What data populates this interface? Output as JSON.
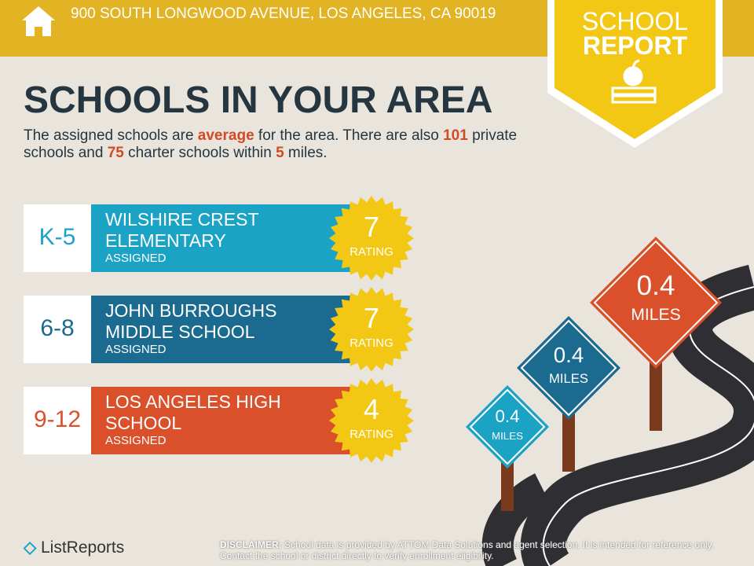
{
  "header": {
    "address": "900 SOUTH LONGWOOD AVENUE, LOS ANGELES, CA 90019",
    "badge": [
      "SCHOOL",
      "REPORT"
    ]
  },
  "title": "SCHOOLS IN YOUR AREA",
  "summary": [
    {
      "text": "The assigned schools are "
    },
    {
      "text": "average",
      "highlight": true
    },
    {
      "text": " for the area. There are also "
    },
    {
      "text": "101",
      "highlight": true
    },
    {
      "text": " private schools and "
    },
    {
      "text": "75",
      "highlight": true
    },
    {
      "text": " charter schools within "
    },
    {
      "text": "5",
      "highlight": true
    },
    {
      "text": " miles."
    }
  ],
  "schools": [
    {
      "grades": "K-5",
      "name": [
        "WILSHIRE CREST",
        "ELEMENTARY"
      ],
      "status": "ASSIGNED",
      "rating": 7,
      "rating_label": "RATING",
      "color": "#1ba3c6"
    },
    {
      "grades": "6-8",
      "name": [
        "JOHN BURROUGHS",
        "MIDDLE SCHOOL"
      ],
      "status": "ASSIGNED",
      "rating": 7,
      "rating_label": "RATING",
      "color": "#1b6a90"
    },
    {
      "grades": "9-12",
      "name": [
        "LOS ANGELES HIGH",
        "SCHOOL"
      ],
      "status": "ASSIGNED",
      "rating": 4,
      "rating_label": "RATING",
      "color": "#d9502a"
    }
  ],
  "distances": [
    {
      "value": 0.4,
      "unit": "MILES",
      "color": "#1ba3c6"
    },
    {
      "value": 0.4,
      "unit": "MILES",
      "color": "#1b6a90"
    },
    {
      "value": 0.4,
      "unit": "MILES",
      "color": "#d9502a"
    }
  ],
  "footer": {
    "brand": "ListReports",
    "disclaimer_label": "DISCLAIMER:",
    "disclaimer": "School data is provided by ATTOM Data Solutions and agent selection. It is intended for reference only. Contact the school or district directly to verify enrollment eligibility."
  }
}
